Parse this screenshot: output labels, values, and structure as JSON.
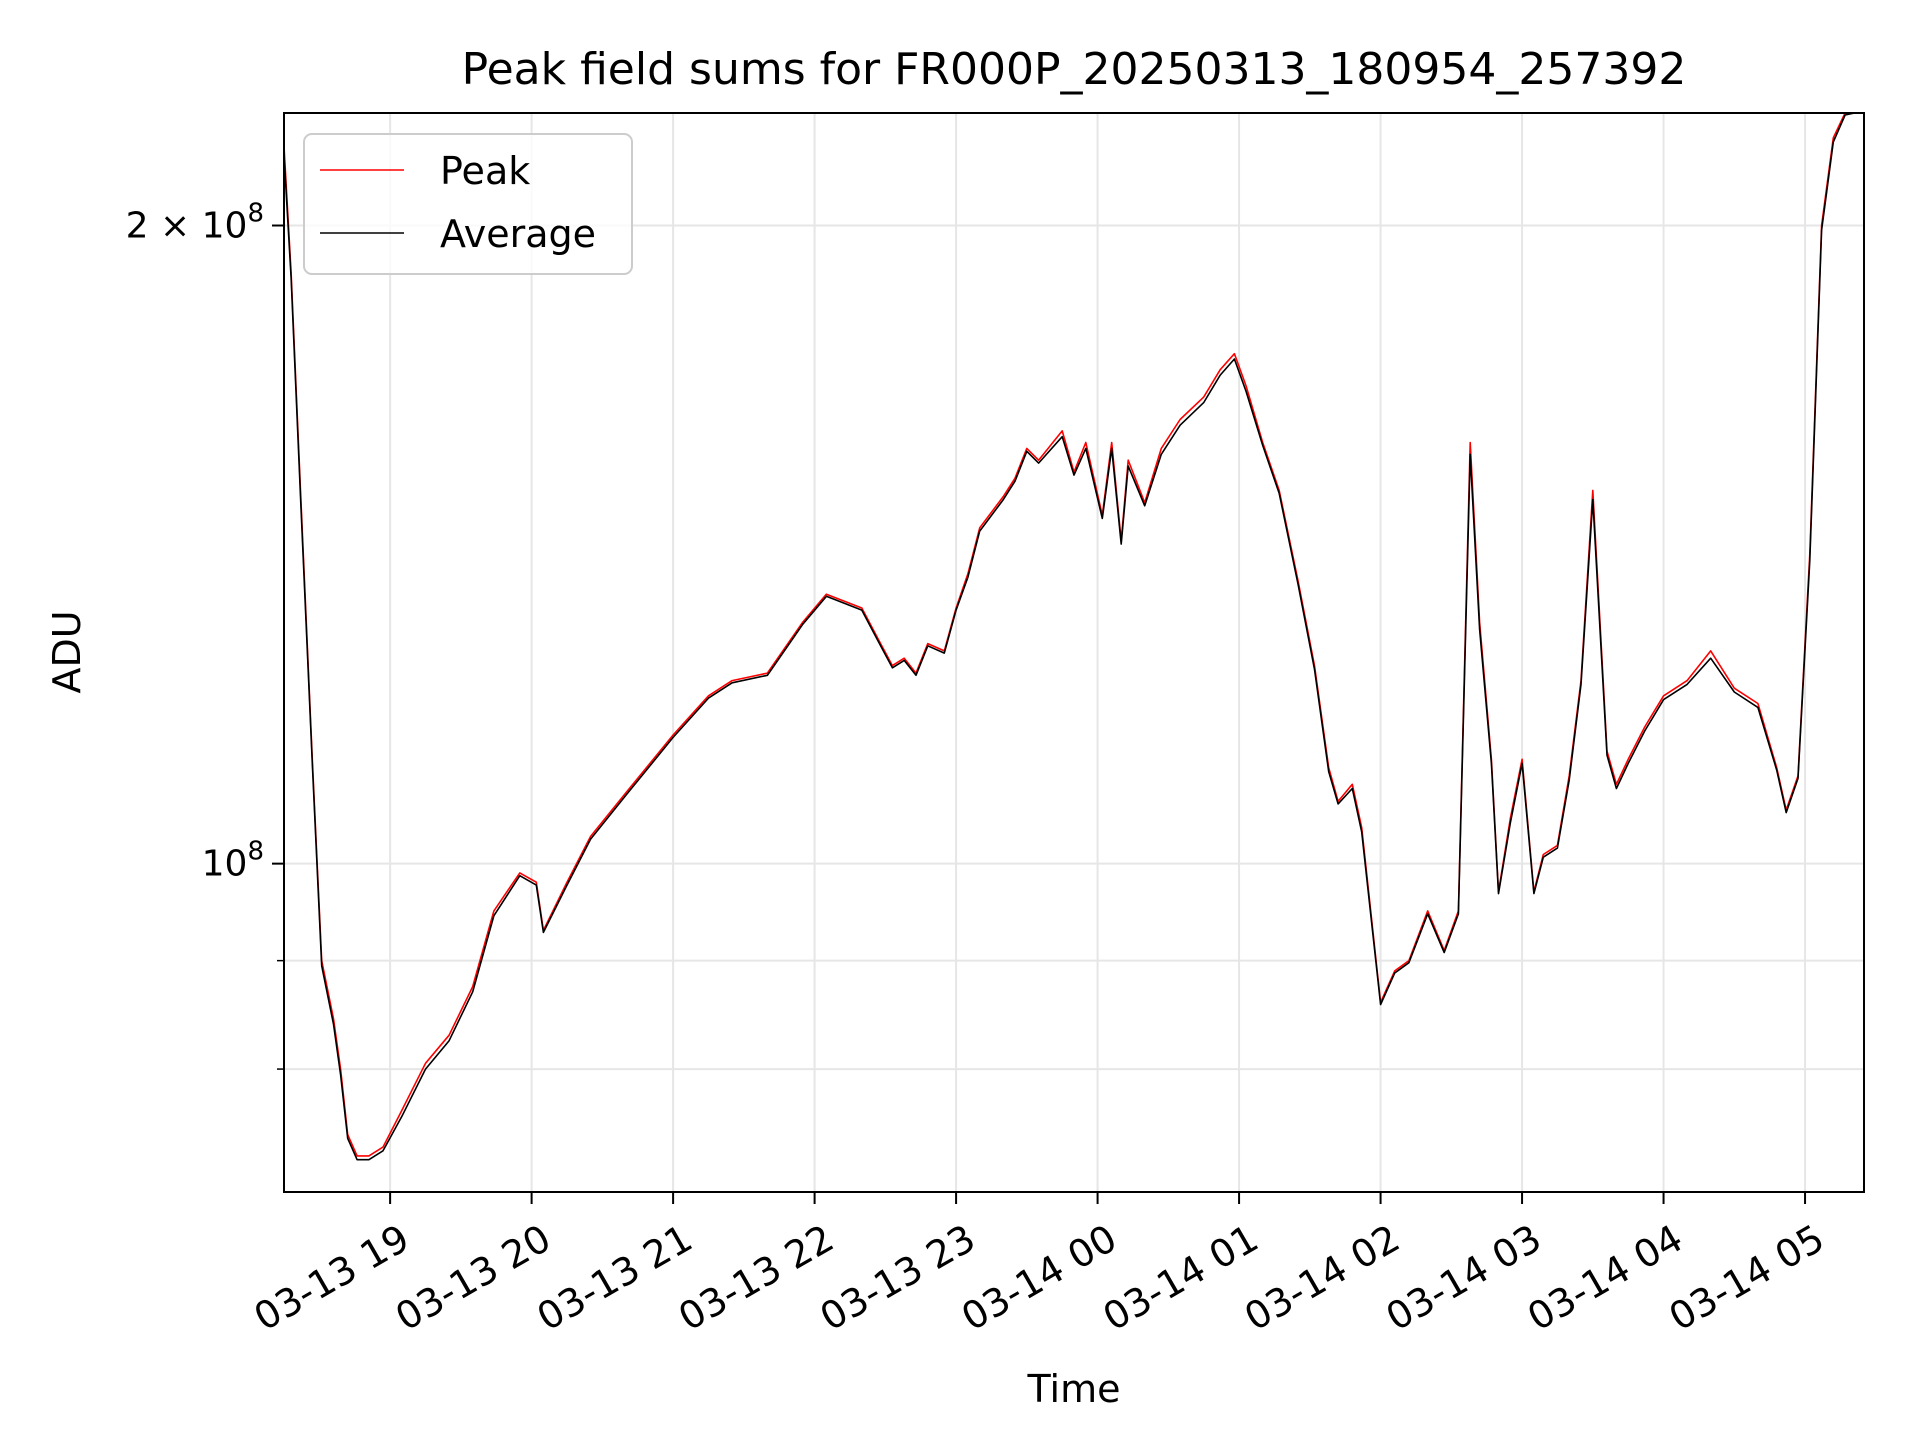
{
  "chart_data": {
    "type": "line",
    "title": "Peak field sums for FR000P_20250313_180954_257392",
    "xlabel": "Time",
    "ylabel": "ADU",
    "y_scale": "log",
    "ylim": [
      70000000,
      226000000
    ],
    "xlim": [
      "2025-03-13 18:15",
      "2025-03-14 05:25"
    ],
    "grid": true,
    "legend": "upper-left",
    "x_ticks": [
      {
        "value": "2025-03-13 19:00",
        "label": "03-13 19"
      },
      {
        "value": "2025-03-13 20:00",
        "label": "03-13 20"
      },
      {
        "value": "2025-03-13 21:00",
        "label": "03-13 21"
      },
      {
        "value": "2025-03-13 22:00",
        "label": "03-13 22"
      },
      {
        "value": "2025-03-13 23:00",
        "label": "03-13 23"
      },
      {
        "value": "2025-03-14 00:00",
        "label": "03-14 00"
      },
      {
        "value": "2025-03-14 01:00",
        "label": "03-14 01"
      },
      {
        "value": "2025-03-14 02:00",
        "label": "03-14 02"
      },
      {
        "value": "2025-03-14 03:00",
        "label": "03-14 03"
      },
      {
        "value": "2025-03-14 04:00",
        "label": "03-14 04"
      },
      {
        "value": "2025-03-14 05:00",
        "label": "03-14 05"
      }
    ],
    "y_ticks": [
      {
        "value": 100000000,
        "base": "10",
        "exp": "8",
        "mantissa": ""
      },
      {
        "value": 200000000,
        "base": "10",
        "exp": "8",
        "mantissa": "2 × "
      }
    ],
    "y_minor_ticks": [
      80000000,
      90000000
    ],
    "series": [
      {
        "name": "Peak",
        "color": "#ff0000",
        "x": [
          "2025-03-13 18:15",
          "2025-03-13 18:18",
          "2025-03-13 18:22",
          "2025-03-13 18:27",
          "2025-03-13 18:31",
          "2025-03-13 18:36",
          "2025-03-13 18:39",
          "2025-03-13 18:42",
          "2025-03-13 18:46",
          "2025-03-13 18:51",
          "2025-03-13 18:57",
          "2025-03-13 19:05",
          "2025-03-13 19:15",
          "2025-03-13 19:25",
          "2025-03-13 19:35",
          "2025-03-13 19:44",
          "2025-03-13 19:55",
          "2025-03-13 20:02",
          "2025-03-13 20:05",
          "2025-03-13 20:15",
          "2025-03-13 20:25",
          "2025-03-13 20:40",
          "2025-03-13 21:00",
          "2025-03-13 21:15",
          "2025-03-13 21:25",
          "2025-03-13 21:40",
          "2025-03-13 21:55",
          "2025-03-13 22:05",
          "2025-03-13 22:20",
          "2025-03-13 22:28",
          "2025-03-13 22:33",
          "2025-03-13 22:38",
          "2025-03-13 22:43",
          "2025-03-13 22:48",
          "2025-03-13 22:55",
          "2025-03-13 23:00",
          "2025-03-13 23:05",
          "2025-03-13 23:10",
          "2025-03-13 23:20",
          "2025-03-13 23:25",
          "2025-03-13 23:30",
          "2025-03-13 23:35",
          "2025-03-13 23:45",
          "2025-03-13 23:50",
          "2025-03-13 23:55",
          "2025-03-14 00:02",
          "2025-03-14 00:06",
          "2025-03-14 00:10",
          "2025-03-14 00:13",
          "2025-03-14 00:20",
          "2025-03-14 00:27",
          "2025-03-14 00:35",
          "2025-03-14 00:45",
          "2025-03-14 00:52",
          "2025-03-14 00:58",
          "2025-03-14 01:03",
          "2025-03-14 01:10",
          "2025-03-14 01:17",
          "2025-03-14 01:25",
          "2025-03-14 01:32",
          "2025-03-14 01:38",
          "2025-03-14 01:42",
          "2025-03-14 01:48",
          "2025-03-14 01:52",
          "2025-03-14 02:00",
          "2025-03-14 02:06",
          "2025-03-14 02:12",
          "2025-03-14 02:20",
          "2025-03-14 02:27",
          "2025-03-14 02:33",
          "2025-03-14 02:38",
          "2025-03-14 02:42",
          "2025-03-14 02:47",
          "2025-03-14 02:50",
          "2025-03-14 02:55",
          "2025-03-14 03:00",
          "2025-03-14 03:05",
          "2025-03-14 03:09",
          "2025-03-14 03:15",
          "2025-03-14 03:20",
          "2025-03-14 03:25",
          "2025-03-14 03:30",
          "2025-03-14 03:36",
          "2025-03-14 03:40",
          "2025-03-14 03:45",
          "2025-03-14 03:52",
          "2025-03-14 04:00",
          "2025-03-14 04:10",
          "2025-03-14 04:20",
          "2025-03-14 04:30",
          "2025-03-14 04:40",
          "2025-03-14 04:48",
          "2025-03-14 04:52",
          "2025-03-14 04:57",
          "2025-03-14 05:02",
          "2025-03-14 05:07",
          "2025-03-14 05:12",
          "2025-03-14 05:17",
          "2025-03-14 05:21",
          "2025-03-14 05:25"
        ],
        "y": [
          218000000,
          190000000,
          150000000,
          112000000,
          90000000,
          84500000,
          80000000,
          74500000,
          72800000,
          72800000,
          73500000,
          76500000,
          80500000,
          83000000,
          87500000,
          95000000,
          99000000,
          98000000,
          93000000,
          98000000,
          103000000,
          108000000,
          115000000,
          120000000,
          122000000,
          123000000,
          130000000,
          134000000,
          132000000,
          127000000,
          124000000,
          125000000,
          123000000,
          127000000,
          126000000,
          132000000,
          137000000,
          144000000,
          149000000,
          152000000,
          157000000,
          155000000,
          160000000,
          153000000,
          158000000,
          146000000,
          158000000,
          142000000,
          155000000,
          148000000,
          157000000,
          162000000,
          166000000,
          171000000,
          174000000,
          168000000,
          158000000,
          150000000,
          136000000,
          124000000,
          111000000,
          107000000,
          109000000,
          104000000,
          86000000,
          89000000,
          90000000,
          95000000,
          91000000,
          95000000,
          158000000,
          130000000,
          112000000,
          97000000,
          105000000,
          112000000,
          97000000,
          101000000,
          102000000,
          110000000,
          122000000,
          150000000,
          113000000,
          109000000,
          112000000,
          116000000,
          120000000,
          122000000,
          126000000,
          121000000,
          119000000,
          111000000,
          106000000,
          110000000,
          140000000,
          200000000,
          220000000,
          226000000,
          226000000,
          226000000
        ]
      },
      {
        "name": "Average",
        "color": "#000000",
        "x": [
          "2025-03-13 18:15",
          "2025-03-13 18:18",
          "2025-03-13 18:22",
          "2025-03-13 18:27",
          "2025-03-13 18:31",
          "2025-03-13 18:36",
          "2025-03-13 18:39",
          "2025-03-13 18:42",
          "2025-03-13 18:46",
          "2025-03-13 18:51",
          "2025-03-13 18:57",
          "2025-03-13 19:05",
          "2025-03-13 19:15",
          "2025-03-13 19:25",
          "2025-03-13 19:35",
          "2025-03-13 19:44",
          "2025-03-13 19:55",
          "2025-03-13 20:02",
          "2025-03-13 20:05",
          "2025-03-13 20:15",
          "2025-03-13 20:25",
          "2025-03-13 20:40",
          "2025-03-13 21:00",
          "2025-03-13 21:15",
          "2025-03-13 21:25",
          "2025-03-13 21:40",
          "2025-03-13 21:55",
          "2025-03-13 22:05",
          "2025-03-13 22:20",
          "2025-03-13 22:28",
          "2025-03-13 22:33",
          "2025-03-13 22:38",
          "2025-03-13 22:43",
          "2025-03-13 22:48",
          "2025-03-13 22:55",
          "2025-03-13 23:00",
          "2025-03-13 23:05",
          "2025-03-13 23:10",
          "2025-03-13 23:20",
          "2025-03-13 23:25",
          "2025-03-13 23:30",
          "2025-03-13 23:35",
          "2025-03-13 23:45",
          "2025-03-13 23:50",
          "2025-03-13 23:55",
          "2025-03-14 00:02",
          "2025-03-14 00:06",
          "2025-03-14 00:10",
          "2025-03-14 00:13",
          "2025-03-14 00:20",
          "2025-03-14 00:27",
          "2025-03-14 00:35",
          "2025-03-14 00:45",
          "2025-03-14 00:52",
          "2025-03-14 00:58",
          "2025-03-14 01:03",
          "2025-03-14 01:10",
          "2025-03-14 01:17",
          "2025-03-14 01:25",
          "2025-03-14 01:32",
          "2025-03-14 01:38",
          "2025-03-14 01:42",
          "2025-03-14 01:48",
          "2025-03-14 01:52",
          "2025-03-14 02:00",
          "2025-03-14 02:06",
          "2025-03-14 02:12",
          "2025-03-14 02:20",
          "2025-03-14 02:27",
          "2025-03-14 02:33",
          "2025-03-14 02:38",
          "2025-03-14 02:42",
          "2025-03-14 02:47",
          "2025-03-14 02:50",
          "2025-03-14 02:55",
          "2025-03-14 03:00",
          "2025-03-14 03:05",
          "2025-03-14 03:09",
          "2025-03-14 03:15",
          "2025-03-14 03:20",
          "2025-03-14 03:25",
          "2025-03-14 03:30",
          "2025-03-14 03:36",
          "2025-03-14 03:40",
          "2025-03-14 03:45",
          "2025-03-14 03:52",
          "2025-03-14 04:00",
          "2025-03-14 04:10",
          "2025-03-14 04:20",
          "2025-03-14 04:30",
          "2025-03-14 04:40",
          "2025-03-14 04:48",
          "2025-03-14 04:52",
          "2025-03-14 04:57",
          "2025-03-14 05:02",
          "2025-03-14 05:07",
          "2025-03-14 05:12",
          "2025-03-14 05:17",
          "2025-03-14 05:21",
          "2025-03-14 05:25"
        ],
        "y": [
          216000000,
          189000000,
          149000000,
          111500000,
          89500000,
          84000000,
          79500000,
          74200000,
          72500000,
          72500000,
          73200000,
          76000000,
          80000000,
          82500000,
          87000000,
          94500000,
          98700000,
          97700000,
          92800000,
          97700000,
          102700000,
          107700000,
          114700000,
          119700000,
          121700000,
          122700000,
          129700000,
          133700000,
          131700000,
          126700000,
          123700000,
          124700000,
          122700000,
          126700000,
          125700000,
          131700000,
          136500000,
          143500000,
          148500000,
          151500000,
          156500000,
          154500000,
          159000000,
          152500000,
          157000000,
          145500000,
          157000000,
          141500000,
          154000000,
          147500000,
          156000000,
          161000000,
          165000000,
          170000000,
          173000000,
          167000000,
          157500000,
          149500000,
          135500000,
          123500000,
          110500000,
          106700000,
          108500000,
          103500000,
          85800000,
          88800000,
          89800000,
          94700000,
          90800000,
          94700000,
          156000000,
          129000000,
          111500000,
          96800000,
          104500000,
          111500000,
          96800000,
          100700000,
          101700000,
          109500000,
          121500000,
          148500000,
          112500000,
          108500000,
          111500000,
          115500000,
          119500000,
          121500000,
          125000000,
          120500000,
          118500000,
          110700000,
          105700000,
          109700000,
          139000000,
          199000000,
          219000000,
          225500000,
          226000000,
          226000000
        ]
      }
    ]
  }
}
